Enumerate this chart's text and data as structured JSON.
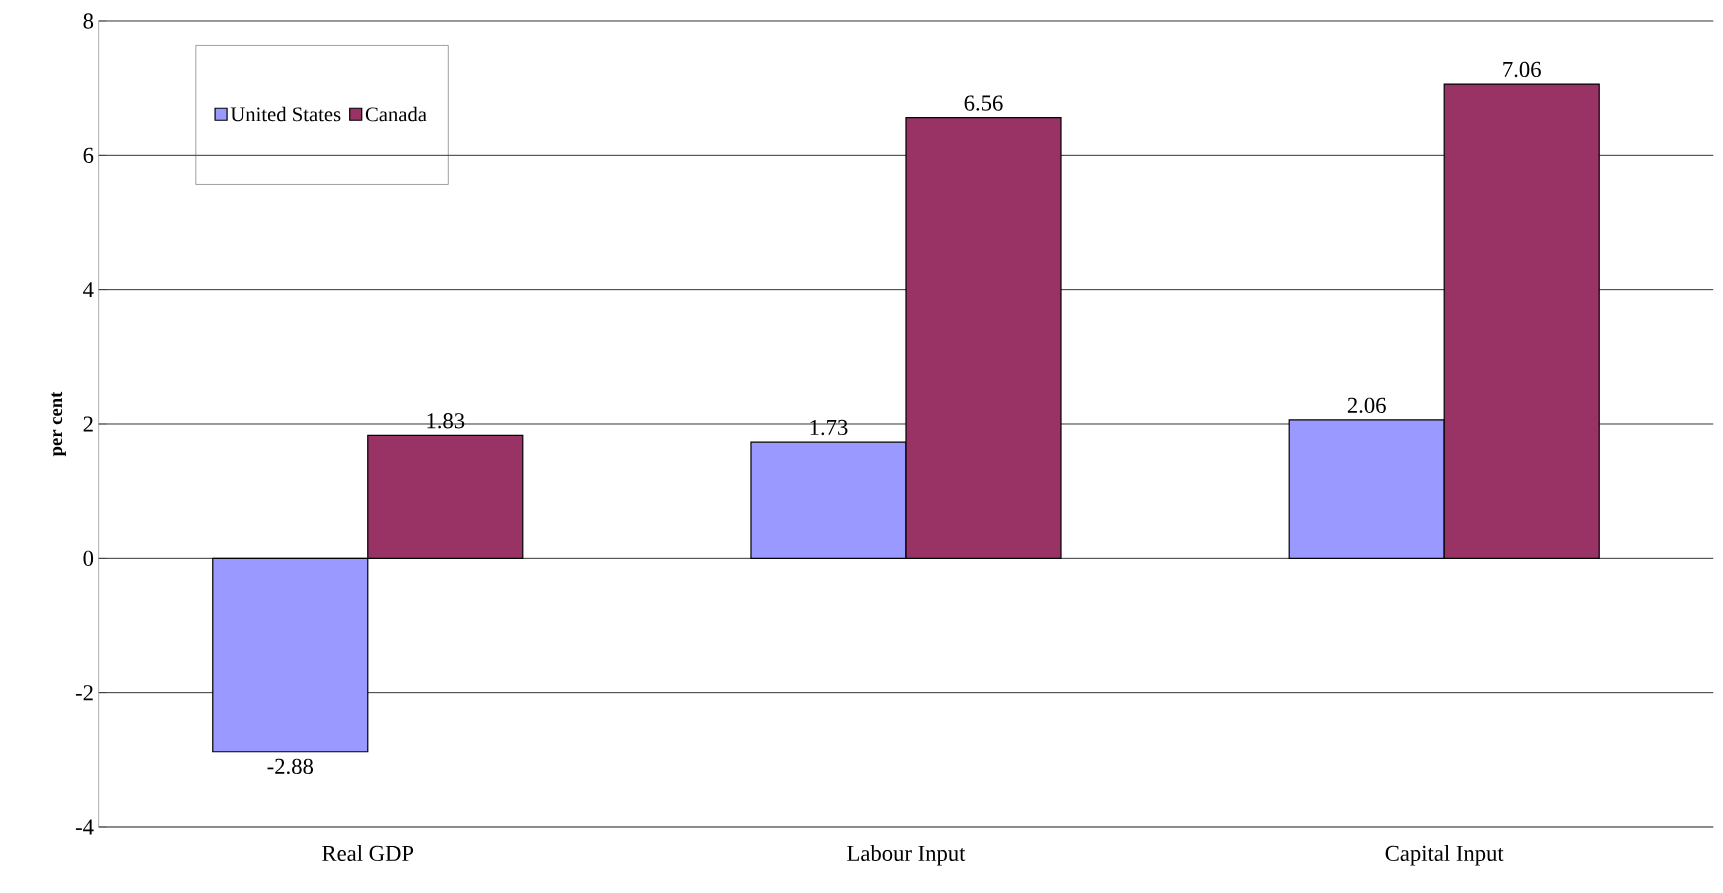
{
  "chart_data": {
    "type": "bar",
    "ylabel": "per cent",
    "categories": [
      "Real GDP",
      "Labour Input",
      "Capital Input"
    ],
    "series": [
      {
        "name": "United States",
        "color": "#9999ff",
        "values": [
          -2.88,
          1.73,
          2.06
        ],
        "value_labels": [
          "-2.88",
          "1.73",
          "2.06"
        ]
      },
      {
        "name": "Canada",
        "color": "#993366",
        "values": [
          1.83,
          6.56,
          7.06
        ],
        "value_labels": [
          "1.83",
          "6.56",
          "7.06"
        ]
      }
    ],
    "ylim": [
      -4,
      8
    ],
    "yticks": [
      -4,
      -2,
      0,
      2,
      4,
      6,
      8
    ],
    "grid": "y",
    "legend": "top left"
  }
}
